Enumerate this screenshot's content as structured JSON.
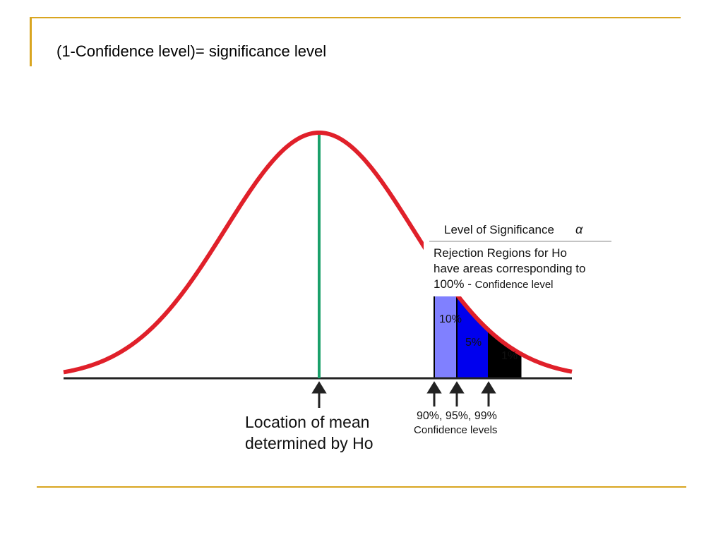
{
  "slide": {
    "title": "(1-Confidence level)= significance level"
  },
  "colors": {
    "accent_rule": "#d9a520",
    "curve": "#e0202a",
    "mean_line": "#1aa06a",
    "region_10": "#8080ff",
    "region_5": "#0000ee",
    "region_1": "#000000",
    "baseline": "#222222"
  },
  "diagram": {
    "legend": {
      "heading": "Level of Significance",
      "alpha_symbol": "α",
      "line1": "Rejection Regions for Ho",
      "line2": "have areas corresponding to",
      "line3_prefix": "100% - ",
      "line3_suffix": "Confidence level"
    },
    "regions": [
      {
        "label": "10%",
        "confidence": 90
      },
      {
        "label": "5%",
        "confidence": 95
      },
      {
        "label": "1%",
        "confidence": 99
      }
    ],
    "mean_label_line1": "Location of mean",
    "mean_label_line2": "determined by Ho",
    "confidence_label_line1": "90%, 95%, 99%",
    "confidence_label_line2": "Confidence levels"
  }
}
